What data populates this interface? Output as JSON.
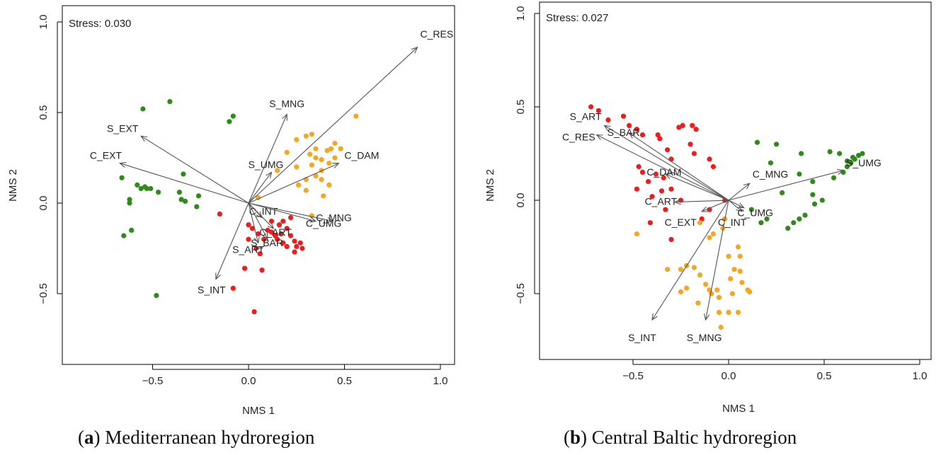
{
  "chart_data": [
    {
      "type": "scatter",
      "panel_letter": "a",
      "caption_text": "Mediterranean hydroregion",
      "stress": "Stress: 0.030",
      "xlabel": "NMS 1",
      "ylabel": "NMS 2",
      "xlim": [
        -1.0,
        1.0
      ],
      "ylim": [
        -0.85,
        1.0
      ],
      "xticks": [
        -0.5,
        0.0,
        0.5,
        1.0
      ],
      "yticks": [
        -0.5,
        0.0,
        0.5,
        1.0
      ],
      "tick_labels_x": [
        "−0.5",
        "0.0",
        "0.5",
        "1.0"
      ],
      "tick_labels_y": [
        "−0.5",
        "0.0",
        "0.5",
        "1.0"
      ],
      "series": [
        {
          "color": "#2e8b1a",
          "points": [
            [
              -0.55,
              0.52
            ],
            [
              -0.41,
              0.56
            ],
            [
              -0.08,
              0.48
            ],
            [
              -0.1,
              0.45
            ],
            [
              -0.66,
              0.14
            ],
            [
              -0.58,
              0.1
            ],
            [
              -0.56,
              0.08
            ],
            [
              -0.54,
              0.09
            ],
            [
              -0.53,
              0.08
            ],
            [
              -0.51,
              0.08
            ],
            [
              -0.47,
              0.06
            ],
            [
              -0.36,
              0.06
            ],
            [
              -0.34,
              0.16
            ],
            [
              -0.35,
              0.02
            ],
            [
              -0.33,
              0.01
            ],
            [
              -0.26,
              0.04
            ],
            [
              -0.27,
              -0.02
            ],
            [
              -0.62,
              0.02
            ],
            [
              -0.62,
              0.0
            ],
            [
              -0.65,
              -0.18
            ],
            [
              -0.61,
              -0.15
            ],
            [
              -0.48,
              -0.51
            ]
          ]
        },
        {
          "color": "#ee1c1c",
          "points": [
            [
              -0.15,
              -0.06
            ],
            [
              0.0,
              -0.12
            ],
            [
              0.02,
              -0.14
            ],
            [
              0.05,
              -0.17
            ],
            [
              0.08,
              -0.2
            ],
            [
              0.1,
              -0.15
            ],
            [
              0.12,
              -0.16
            ],
            [
              0.14,
              -0.18
            ],
            [
              0.15,
              -0.2
            ],
            [
              0.17,
              -0.17
            ],
            [
              0.18,
              -0.22
            ],
            [
              0.2,
              -0.24
            ],
            [
              0.22,
              -0.18
            ],
            [
              0.24,
              -0.21
            ],
            [
              0.25,
              -0.24
            ],
            [
              0.27,
              -0.22
            ],
            [
              0.28,
              -0.25
            ],
            [
              0.24,
              -0.27
            ],
            [
              0.2,
              -0.14
            ],
            [
              0.16,
              -0.12
            ],
            [
              0.12,
              -0.1
            ],
            [
              0.04,
              -0.25
            ],
            [
              0.06,
              -0.28
            ],
            [
              -0.02,
              -0.36
            ],
            [
              0.07,
              -0.37
            ],
            [
              -0.08,
              -0.47
            ],
            [
              0.03,
              -0.6
            ],
            [
              0.0,
              -0.2
            ],
            [
              0.22,
              -0.08
            ],
            [
              0.18,
              -0.1
            ]
          ]
        },
        {
          "color": "#f5a623",
          "points": [
            [
              0.56,
              0.48
            ],
            [
              0.2,
              0.28
            ],
            [
              0.25,
              0.35
            ],
            [
              0.3,
              0.37
            ],
            [
              0.33,
              0.38
            ],
            [
              0.35,
              0.3
            ],
            [
              0.32,
              0.27
            ],
            [
              0.35,
              0.25
            ],
            [
              0.41,
              0.29
            ],
            [
              0.43,
              0.3
            ],
            [
              0.45,
              0.33
            ],
            [
              0.48,
              0.3
            ],
            [
              0.33,
              0.21
            ],
            [
              0.38,
              0.24
            ],
            [
              0.42,
              0.22
            ],
            [
              0.45,
              0.25
            ],
            [
              0.38,
              0.18
            ],
            [
              0.35,
              0.15
            ],
            [
              0.3,
              0.13
            ],
            [
              0.26,
              0.1
            ],
            [
              0.3,
              0.07
            ],
            [
              0.38,
              0.13
            ],
            [
              0.42,
              0.1
            ],
            [
              0.39,
              0.04
            ],
            [
              0.33,
              -0.07
            ],
            [
              0.25,
              0.2
            ],
            [
              0.05,
              0.03
            ],
            [
              0.15,
              0.18
            ]
          ]
        }
      ],
      "vectors": [
        {
          "label": "C_RES",
          "x": 0.88,
          "y": 0.86
        },
        {
          "label": "S_MNG",
          "x": 0.2,
          "y": 0.49
        },
        {
          "label": "S_EXT",
          "x": -0.56,
          "y": 0.37
        },
        {
          "label": "C_EXT",
          "x": -0.67,
          "y": 0.22
        },
        {
          "label": "C_DAM",
          "x": 0.47,
          "y": 0.22
        },
        {
          "label": "S_UMG",
          "x": 0.12,
          "y": 0.17
        },
        {
          "label": "C_INT",
          "x": 0.07,
          "y": -0.08
        },
        {
          "label": "C_UMG",
          "x": 0.35,
          "y": -0.1
        },
        {
          "label": "C_MNG",
          "x": 0.44,
          "y": -0.1
        },
        {
          "label": "C_ART",
          "x": 0.13,
          "y": -0.14
        },
        {
          "label": "S_BAR",
          "x": 0.1,
          "y": -0.2
        },
        {
          "label": "S_ART",
          "x": 0.05,
          "y": -0.22
        },
        {
          "label": "S_INT",
          "x": -0.17,
          "y": -0.42
        }
      ]
    },
    {
      "type": "scatter",
      "panel_letter": "b",
      "caption_text": "Central Baltic hydroregion",
      "stress": "Stress: 0.027",
      "xlabel": "NMS 1",
      "ylabel": "NMS 2",
      "xlim": [
        -1.0,
        1.0
      ],
      "ylim": [
        -0.85,
        1.0
      ],
      "xticks": [
        -0.5,
        0.0,
        0.5,
        1.0
      ],
      "yticks": [
        -0.5,
        0.0,
        0.5,
        1.0
      ],
      "tick_labels_x": [
        "−0.5",
        "0.0",
        "0.5",
        "1.0"
      ],
      "tick_labels_y": [
        "−0.5",
        "0.0",
        "0.5",
        "1.0"
      ],
      "series": [
        {
          "color": "#2e8b1a",
          "points": [
            [
              0.15,
              0.31
            ],
            [
              0.25,
              0.3
            ],
            [
              0.22,
              0.2
            ],
            [
              0.38,
              0.25
            ],
            [
              0.53,
              0.26
            ],
            [
              0.58,
              0.25
            ],
            [
              0.62,
              0.21
            ],
            [
              0.65,
              0.23
            ],
            [
              0.66,
              0.22
            ],
            [
              0.68,
              0.24
            ],
            [
              0.7,
              0.25
            ],
            [
              0.64,
              0.2
            ],
            [
              0.62,
              0.18
            ],
            [
              0.6,
              0.15
            ],
            [
              0.55,
              0.12
            ],
            [
              0.37,
              0.14
            ],
            [
              0.44,
              0.1
            ],
            [
              0.44,
              0.03
            ],
            [
              0.49,
              0.0
            ],
            [
              0.45,
              -0.02
            ],
            [
              0.4,
              -0.08
            ],
            [
              0.37,
              -0.1
            ],
            [
              0.34,
              -0.12
            ],
            [
              0.31,
              -0.15
            ],
            [
              0.2,
              -0.1
            ],
            [
              0.17,
              -0.12
            ],
            [
              0.28,
              0.04
            ],
            [
              0.12,
              -0.05
            ]
          ]
        },
        {
          "color": "#ee1c1c",
          "points": [
            [
              -0.72,
              0.5
            ],
            [
              -0.68,
              0.48
            ],
            [
              -0.63,
              0.43
            ],
            [
              -0.55,
              0.45
            ],
            [
              -0.52,
              0.4
            ],
            [
              -0.48,
              0.38
            ],
            [
              -0.45,
              0.35
            ],
            [
              -0.37,
              0.35
            ],
            [
              -0.36,
              0.33
            ],
            [
              -0.32,
              0.27
            ],
            [
              -0.3,
              0.22
            ],
            [
              -0.26,
              0.39
            ],
            [
              -0.24,
              0.4
            ],
            [
              -0.19,
              0.4
            ],
            [
              -0.17,
              0.38
            ],
            [
              -0.2,
              0.3
            ],
            [
              -0.18,
              0.25
            ],
            [
              -0.1,
              0.22
            ],
            [
              -0.08,
              0.18
            ],
            [
              -0.47,
              0.18
            ],
            [
              -0.45,
              0.15
            ],
            [
              -0.42,
              0.1
            ],
            [
              -0.38,
              0.14
            ],
            [
              -0.34,
              0.12
            ],
            [
              -0.3,
              0.06
            ],
            [
              -0.35,
              0.05
            ],
            [
              -0.48,
              0.06
            ],
            [
              -0.4,
              0.02
            ],
            [
              -0.25,
              0.0
            ],
            [
              -0.33,
              -0.05
            ],
            [
              -0.41,
              -0.12
            ],
            [
              -0.3,
              -0.21
            ],
            [
              -0.14,
              -0.1
            ],
            [
              -0.1,
              -0.05
            ],
            [
              -0.02,
              0.0
            ]
          ]
        },
        {
          "color": "#f5a623",
          "points": [
            [
              -0.48,
              -0.18
            ],
            [
              -0.32,
              -0.37
            ],
            [
              -0.25,
              -0.37
            ],
            [
              -0.22,
              -0.35
            ],
            [
              -0.18,
              -0.36
            ],
            [
              -0.15,
              -0.4
            ],
            [
              -0.22,
              -0.47
            ],
            [
              -0.25,
              -0.49
            ],
            [
              -0.16,
              -0.55
            ],
            [
              -0.12,
              -0.45
            ],
            [
              -0.1,
              -0.48
            ],
            [
              -0.09,
              -0.5
            ],
            [
              -0.06,
              -0.48
            ],
            [
              -0.05,
              -0.52
            ],
            [
              -0.05,
              -0.6
            ],
            [
              -0.04,
              -0.68
            ],
            [
              0.0,
              -0.6
            ],
            [
              0.02,
              -0.5
            ],
            [
              0.01,
              -0.42
            ],
            [
              0.0,
              -0.3
            ],
            [
              0.03,
              -0.37
            ],
            [
              0.05,
              -0.25
            ],
            [
              0.06,
              -0.3
            ],
            [
              0.06,
              -0.38
            ],
            [
              0.07,
              -0.44
            ],
            [
              0.1,
              -0.48
            ],
            [
              0.11,
              -0.49
            ],
            [
              -0.03,
              -0.15
            ],
            [
              -0.02,
              -0.1
            ],
            [
              -0.08,
              -0.18
            ],
            [
              -0.15,
              -0.12
            ],
            [
              -0.1,
              -0.2
            ],
            [
              0.05,
              -0.6
            ]
          ]
        }
      ],
      "vectors": [
        {
          "label": "S_ART",
          "x": -0.65,
          "y": 0.4
        },
        {
          "label": "S_BAR",
          "x": -0.52,
          "y": 0.36
        },
        {
          "label": "C_RES",
          "x": -0.69,
          "y": 0.35
        },
        {
          "label": "C_DAM",
          "x": -0.33,
          "y": 0.14
        },
        {
          "label": "C_MNG",
          "x": 0.11,
          "y": 0.09
        },
        {
          "label": "S_UMG",
          "x": 0.6,
          "y": 0.16
        },
        {
          "label": "C_ART",
          "x": -0.28,
          "y": -0.01
        },
        {
          "label": "C_EXT",
          "x": -0.14,
          "y": -0.06
        },
        {
          "label": "C_UMG",
          "x": 0.08,
          "y": -0.04
        },
        {
          "label": "C_INT",
          "x": 0.07,
          "y": -0.06
        },
        {
          "label": "S_INT",
          "x": -0.4,
          "y": -0.64
        },
        {
          "label": "S_MNG",
          "x": -0.12,
          "y": -0.64
        }
      ]
    }
  ]
}
